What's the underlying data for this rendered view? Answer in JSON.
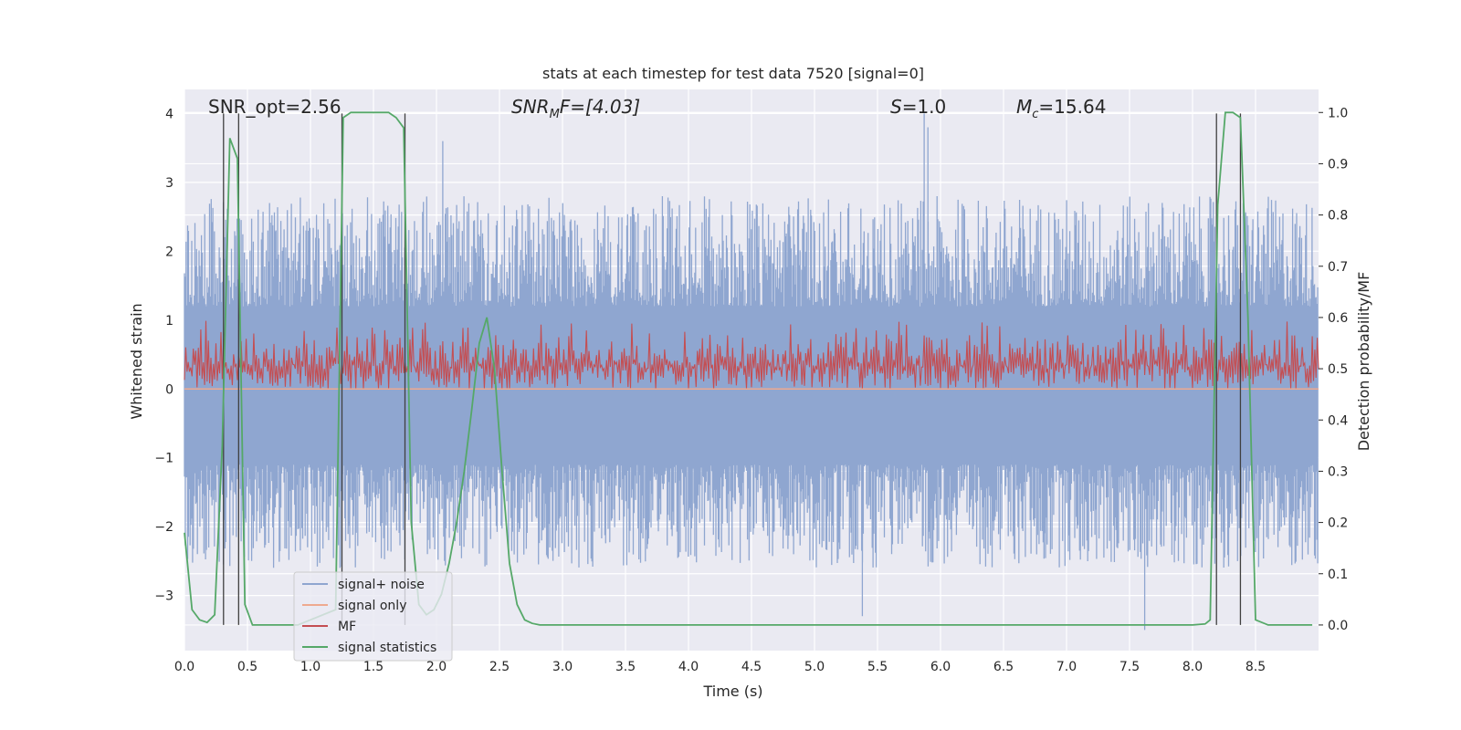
{
  "chart_data": {
    "type": "line",
    "title": "stats at each timestep for test data 7520 [signal=0]",
    "xlabel": "Time (s)",
    "ylabel": "Whitened strain",
    "ylabel_right": "Detection probability/MF",
    "xlim": [
      0.0,
      9.0
    ],
    "ylim": [
      -3.8,
      4.35
    ],
    "ylim_right": [
      -0.05,
      1.045
    ],
    "xticks": [
      "0.0",
      "0.5",
      "1.0",
      "1.5",
      "2.0",
      "2.5",
      "3.0",
      "3.5",
      "4.0",
      "4.5",
      "5.0",
      "5.5",
      "6.0",
      "6.5",
      "7.0",
      "7.5",
      "8.0",
      "8.5"
    ],
    "yticks_left": [
      "4",
      "3",
      "2",
      "1",
      "0",
      "−1",
      "−2",
      "−3"
    ],
    "yticks_right": [
      "1.0",
      "0.9",
      "0.8",
      "0.7",
      "0.6",
      "0.5",
      "0.4",
      "0.3",
      "0.2",
      "0.1",
      "0.0"
    ],
    "annotations": {
      "snr_opt": "SNR_opt=2.56",
      "snr_mf_italic": "SNR",
      "snr_mf_sub": "M",
      "snr_mf_tail": "F=[4.03]",
      "s_italic": "S",
      "s_value": "=1.0",
      "mc_italic": "M",
      "mc_sub": "c",
      "mc_value": "=15.64"
    },
    "legend": {
      "placement": "lower-left",
      "entries": [
        "signal+ noise",
        "signal only",
        "MF",
        "signal statistics"
      ]
    },
    "colors": {
      "signal_noise": "#8fa6d0",
      "signal_only": "#eea98f",
      "mf": "#c44e52",
      "signal_statistics": "#55a868",
      "vlines": "#404040",
      "background": "#eaeaf2",
      "grid": "#ffffff"
    },
    "series": [
      {
        "name": "signal+ noise",
        "axis": "left",
        "description_range": [
          -3.4,
          4.0
        ],
        "envelope": {
          "low": [
            -1.1,
            -2.6
          ],
          "high": [
            1.2,
            2.8
          ]
        },
        "peaks": [
          [
            5.87,
            4.0
          ],
          [
            5.9,
            3.8
          ],
          [
            2.05,
            3.6
          ],
          [
            5.38,
            -3.3
          ],
          [
            7.62,
            -3.5
          ]
        ]
      },
      {
        "name": "signal only",
        "axis": "left",
        "x": [
          0.0,
          9.0
        ],
        "y": [
          0.0,
          0.0
        ]
      },
      {
        "name": "MF",
        "axis": "right",
        "baseline": 0.5,
        "band": [
          0.46,
          0.6
        ]
      },
      {
        "name": "signal statistics",
        "axis": "right",
        "x": [
          0.0,
          0.06,
          0.12,
          0.18,
          0.24,
          0.3,
          0.36,
          0.42,
          0.48,
          0.54,
          0.6,
          0.9,
          1.2,
          1.26,
          1.32,
          1.38,
          1.5,
          1.62,
          1.68,
          1.74,
          1.8,
          1.86,
          1.92,
          1.98,
          2.04,
          2.1,
          2.16,
          2.22,
          2.28,
          2.34,
          2.4,
          2.46,
          2.52,
          2.58,
          2.64,
          2.7,
          2.76,
          2.82,
          2.9,
          8.0,
          8.1,
          8.14,
          8.2,
          8.26,
          8.32,
          8.38,
          8.44,
          8.5,
          8.6,
          8.95
        ],
        "y": [
          0.18,
          0.03,
          0.01,
          0.005,
          0.02,
          0.35,
          0.95,
          0.91,
          0.04,
          0.0,
          0.0,
          0.0,
          0.03,
          0.99,
          1.0,
          1.0,
          1.0,
          1.0,
          0.99,
          0.97,
          0.2,
          0.04,
          0.02,
          0.03,
          0.06,
          0.12,
          0.2,
          0.3,
          0.42,
          0.55,
          0.6,
          0.5,
          0.3,
          0.12,
          0.04,
          0.01,
          0.003,
          0.0,
          0.0,
          0.0,
          0.002,
          0.01,
          0.82,
          1.0,
          1.0,
          0.99,
          0.6,
          0.01,
          0.0,
          0.0
        ]
      }
    ],
    "vertical_lines_x": [
      0.31,
      0.43,
      1.25,
      1.75,
      8.19,
      8.38
    ]
  }
}
